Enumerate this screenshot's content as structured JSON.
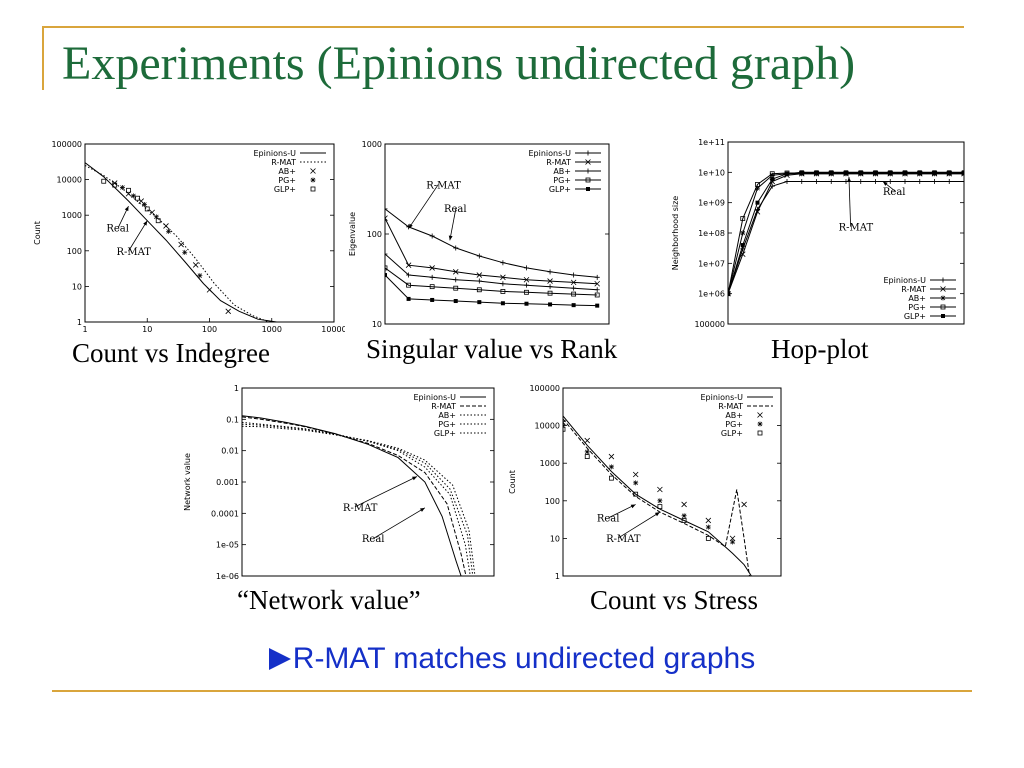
{
  "slide": {
    "title": "Experiments (Epinions undirected graph)",
    "conclusion": "R-MAT matches undirected graphs",
    "accent_color": "#d9a53c",
    "title_color": "#1d6b3a",
    "conclusion_color": "#1530c8"
  },
  "captions": {
    "indegree": "Count vs Indegree",
    "singular": "Singular value vs Rank",
    "hopplot": "Hop-plot",
    "network": "“Network value”",
    "stress": "Count vs Stress"
  },
  "chart_data": [
    {
      "id": "indegree",
      "type": "scatter",
      "title": "",
      "xlabel": "",
      "ylabel": "Count",
      "xscale": "log",
      "yscale": "log",
      "xlim": [
        1,
        10000
      ],
      "ylim": [
        1,
        100000
      ],
      "xticks": [
        1,
        10,
        100,
        1000,
        10000
      ],
      "yticks": [
        1,
        10,
        100,
        1000,
        10000,
        100000
      ],
      "xtick_labels": [
        "1",
        "10",
        "100",
        "1000",
        "10000"
      ],
      "ytick_labels": [
        "1",
        "10",
        "100",
        "1000",
        "10000",
        "100000"
      ],
      "legend_position": "top-right",
      "series": [
        {
          "name": "Epinions-U",
          "style": "solid",
          "x": [
            1,
            2,
            3,
            5,
            10,
            20,
            40,
            80,
            150,
            300,
            600,
            1200
          ],
          "y": [
            30000,
            12000,
            6000,
            2500,
            700,
            200,
            50,
            12,
            4,
            2,
            1.2,
            1
          ]
        },
        {
          "name": "R-MAT",
          "style": "dotted",
          "x": [
            1,
            2,
            4,
            8,
            15,
            30,
            60,
            120,
            250,
            500,
            900
          ],
          "y": [
            25000,
            13000,
            5500,
            2000,
            800,
            250,
            60,
            12,
            3,
            1.5,
            1
          ]
        },
        {
          "name": "AB+",
          "style": "x-marker",
          "x": [
            3,
            5,
            8,
            12,
            20,
            35,
            60,
            100,
            200
          ],
          "y": [
            8000,
            4000,
            2500,
            1200,
            500,
            150,
            40,
            8,
            2
          ]
        },
        {
          "name": "PG+",
          "style": "star-marker",
          "x": [
            4,
            6,
            9,
            14,
            22,
            40,
            70
          ],
          "y": [
            6000,
            3500,
            2000,
            900,
            350,
            90,
            20
          ]
        },
        {
          "name": "GLP+",
          "style": "square-marker",
          "x": [
            2,
            3,
            5,
            7,
            10,
            15
          ],
          "y": [
            9000,
            7000,
            5000,
            3000,
            1500,
            700
          ]
        }
      ],
      "annotations": [
        {
          "text": "Real",
          "x": 2.2,
          "y": 350,
          "arrow_to": [
            5,
            1800
          ]
        },
        {
          "text": "R-MAT",
          "x": 3.2,
          "y": 75,
          "arrow_to": [
            10,
            700
          ]
        }
      ]
    },
    {
      "id": "singular",
      "type": "line",
      "title": "",
      "xlabel": "",
      "ylabel": "Eigenvalue",
      "xscale": "linear",
      "yscale": "log",
      "xlim": [
        1,
        20
      ],
      "ylim": [
        10,
        1000
      ],
      "yticks": [
        10,
        100,
        1000
      ],
      "ytick_labels": [
        "10",
        "100",
        "1000"
      ],
      "legend_position": "top-right",
      "series": [
        {
          "name": "Epinions-U",
          "style": "plus-marker",
          "x": [
            1,
            3,
            5,
            7,
            9,
            11,
            13,
            15,
            17,
            19
          ],
          "y": [
            190,
            120,
            95,
            70,
            57,
            48,
            42,
            38,
            35,
            33
          ]
        },
        {
          "name": "R-MAT",
          "style": "x-marker",
          "x": [
            1,
            3,
            5,
            7,
            9,
            11,
            13,
            15,
            17,
            19
          ],
          "y": [
            150,
            45,
            42,
            38,
            35,
            33,
            31,
            30,
            29,
            28
          ]
        },
        {
          "name": "AB+",
          "style": "plus-marker",
          "x": [
            1,
            3,
            5,
            7,
            9,
            11,
            13,
            15,
            17,
            19
          ],
          "y": [
            60,
            35,
            33,
            31,
            30,
            28,
            27,
            26,
            25,
            24
          ]
        },
        {
          "name": "PG+",
          "style": "square-marker",
          "x": [
            1,
            3,
            5,
            7,
            9,
            11,
            13,
            15,
            17,
            19
          ],
          "y": [
            42,
            27,
            26,
            25,
            24,
            23,
            22.5,
            22,
            21.5,
            21
          ]
        },
        {
          "name": "GLP+",
          "style": "filled-square",
          "x": [
            1,
            3,
            5,
            7,
            9,
            11,
            13,
            15,
            17,
            19
          ],
          "y": [
            35,
            19,
            18.5,
            18,
            17.5,
            17,
            16.8,
            16.5,
            16.2,
            16
          ]
        }
      ],
      "annotations": [
        {
          "text": "R-MAT",
          "x": 4.5,
          "y": 320,
          "arrow_to": [
            3,
            115
          ]
        },
        {
          "text": "Real",
          "x": 6,
          "y": 175,
          "arrow_to": [
            6.5,
            85
          ]
        }
      ]
    },
    {
      "id": "hopplot",
      "type": "line",
      "title": "",
      "xlabel": "",
      "ylabel": "Neighborhood size",
      "xscale": "linear",
      "yscale": "log",
      "xlim": [
        0,
        16
      ],
      "ylim": [
        100000,
        100000000000
      ],
      "yticks": [
        100000,
        1000000,
        10000000,
        100000000,
        1000000000,
        10000000000,
        100000000000
      ],
      "ytick_labels": [
        "100000",
        "1e+06",
        "1e+07",
        "1e+08",
        "1e+09",
        "1e+10",
        "1e+11"
      ],
      "legend_position": "bottom-right",
      "series": [
        {
          "name": "Epinions-U",
          "style": "plus-marker",
          "x": [
            0,
            1,
            2,
            3,
            4,
            5,
            6,
            7,
            8,
            9,
            10,
            11,
            12,
            13,
            14,
            15,
            16
          ],
          "y": [
            1000000.0,
            30000000.0,
            600000000.0,
            3500000000.0,
            5000000000.0,
            5000000000.0,
            5000000000.0,
            5000000000.0,
            5000000000.0,
            5000000000.0,
            5000000000.0,
            5000000000.0,
            5000000000.0,
            5000000000.0,
            5000000000.0,
            5000000000.0,
            5000000000.0
          ]
        },
        {
          "name": "R-MAT",
          "style": "x-marker",
          "x": [
            0,
            1,
            2,
            3,
            4,
            5,
            6,
            7,
            8,
            9,
            10,
            11,
            12,
            13,
            14,
            15,
            16
          ],
          "y": [
            1000000.0,
            20000000.0,
            500000000.0,
            5000000000.0,
            8000000000.0,
            9000000000.0,
            9000000000.0,
            9000000000.0,
            9000000000.0,
            9000000000.0,
            9000000000.0,
            9000000000.0,
            9000000000.0,
            9000000000.0,
            9000000000.0,
            9000000000.0,
            9000000000.0
          ]
        },
        {
          "name": "AB+",
          "style": "star-marker",
          "x": [
            0,
            1,
            2,
            3,
            4,
            5,
            6,
            7,
            8,
            9,
            10,
            11,
            12,
            13,
            14,
            15,
            16
          ],
          "y": [
            1000000.0,
            100000000.0,
            3000000000.0,
            8000000000.0,
            9000000000.0,
            9000000000.0,
            9000000000.0,
            9000000000.0,
            9000000000.0,
            9000000000.0,
            9000000000.0,
            9000000000.0,
            9000000000.0,
            9000000000.0,
            9000000000.0,
            9000000000.0,
            9000000000.0
          ]
        },
        {
          "name": "PG+",
          "style": "square-marker",
          "x": [
            0,
            1,
            2,
            3,
            4,
            5,
            6,
            7,
            8,
            9,
            10,
            11,
            12,
            13,
            14,
            15,
            16
          ],
          "y": [
            1000000.0,
            300000000.0,
            4000000000.0,
            9000000000.0,
            9500000000.0,
            9500000000.0,
            9500000000.0,
            9500000000.0,
            9500000000.0,
            9500000000.0,
            9500000000.0,
            9500000000.0,
            9500000000.0,
            9500000000.0,
            9500000000.0,
            9500000000.0,
            9500000000.0
          ]
        },
        {
          "name": "GLP+",
          "style": "filled-square",
          "x": [
            0,
            1,
            2,
            3,
            4,
            5,
            6,
            7,
            8,
            9,
            10,
            11,
            12,
            13,
            14,
            15,
            16
          ],
          "y": [
            1000000.0,
            40000000.0,
            1000000000.0,
            6000000000.0,
            9000000000.0,
            10000000000.0,
            10000000000.0,
            10000000000.0,
            10000000000.0,
            10000000000.0,
            10000000000.0,
            10000000000.0,
            10000000000.0,
            10000000000.0,
            10000000000.0,
            10000000000.0,
            10000000000.0
          ]
        }
      ],
      "annotations": [
        {
          "text": "Real",
          "x": 10.5,
          "y": 1800000000.0,
          "arrow_to": [
            10.5,
            5000000000.0
          ]
        },
        {
          "text": "R-MAT",
          "x": 7.5,
          "y": 120000000.0,
          "arrow_to": [
            8.2,
            7000000000.0
          ]
        }
      ]
    },
    {
      "id": "network",
      "type": "line",
      "title": "",
      "xlabel": "",
      "ylabel": "Network value",
      "xscale": "log",
      "yscale": "log",
      "xlim": [
        1,
        10000
      ],
      "ylim": [
        1e-06,
        1
      ],
      "yticks": [
        1e-06,
        1e-05,
        0.0001,
        0.001,
        0.01,
        0.1,
        1
      ],
      "ytick_labels": [
        "1e-06",
        "1e-05",
        "0.0001",
        "0.001",
        "0.01",
        "0.1",
        "1"
      ],
      "legend_position": "top-right",
      "series": [
        {
          "name": "Epinions-U",
          "style": "solid",
          "x": [
            1,
            2,
            5,
            10,
            30,
            100,
            300,
            800,
            1500,
            2500,
            3000
          ],
          "y": [
            0.13,
            0.11,
            0.08,
            0.06,
            0.035,
            0.016,
            0.006,
            0.001,
            8e-05,
            3e-06,
            1e-06
          ]
        },
        {
          "name": "R-MAT",
          "style": "dashed",
          "x": [
            1,
            2,
            5,
            10,
            30,
            100,
            300,
            800,
            1800,
            3000,
            3600
          ],
          "y": [
            0.12,
            0.1,
            0.075,
            0.058,
            0.034,
            0.017,
            0.007,
            0.002,
            0.0002,
            5e-06,
            1e-06
          ]
        },
        {
          "name": "AB+",
          "style": "dotted",
          "x": [
            1,
            2,
            5,
            10,
            30,
            100,
            300,
            800,
            2000,
            3500,
            4200
          ],
          "y": [
            0.07,
            0.065,
            0.055,
            0.048,
            0.033,
            0.02,
            0.01,
            0.003,
            0.0004,
            1e-05,
            1e-06
          ]
        },
        {
          "name": "PG+",
          "style": "dotted",
          "x": [
            1,
            2,
            5,
            10,
            30,
            100,
            300,
            800,
            2000,
            3800,
            4600
          ],
          "y": [
            0.08,
            0.07,
            0.058,
            0.05,
            0.034,
            0.02,
            0.011,
            0.004,
            0.0006,
            2e-05,
            1e-06
          ]
        },
        {
          "name": "GLP+",
          "style": "dotted",
          "x": [
            1,
            2,
            5,
            10,
            30,
            100,
            300,
            800,
            2200,
            4000,
            5000
          ],
          "y": [
            0.06,
            0.058,
            0.05,
            0.045,
            0.032,
            0.021,
            0.012,
            0.005,
            0.0008,
            3e-05,
            1e-06
          ]
        }
      ],
      "annotations": [
        {
          "text": "R-MAT",
          "x": 40,
          "y": 0.00012,
          "arrow_to": [
            600,
            0.0015
          ]
        },
        {
          "text": "Real",
          "x": 80,
          "y": 1.2e-05,
          "arrow_to": [
            800,
            0.00015
          ]
        }
      ]
    },
    {
      "id": "stress",
      "type": "scatter",
      "title": "",
      "xlabel": "",
      "ylabel": "Count",
      "xscale": "log",
      "yscale": "log",
      "xlim": [
        1,
        1000000000
      ],
      "ylim": [
        1,
        100000
      ],
      "yticks": [
        1,
        10,
        100,
        1000,
        10000,
        100000
      ],
      "ytick_labels": [
        "1",
        "10",
        "100",
        "1000",
        "10000",
        "100000"
      ],
      "legend_position": "top-right",
      "series": [
        {
          "name": "Epinions-U",
          "style": "solid",
          "x": [
            1,
            10,
            100,
            1000,
            10000,
            100000,
            1000000,
            3000000,
            10000000,
            30000000,
            60000000
          ],
          "y": [
            18000,
            3000,
            600,
            150,
            60,
            30,
            15,
            8,
            4,
            2,
            1
          ]
        },
        {
          "name": "R-MAT",
          "style": "dashed",
          "x": [
            1,
            10,
            100,
            1000,
            10000,
            100000,
            1000000,
            5000000,
            15000000,
            30000000,
            50000000
          ],
          "y": [
            15000,
            2500,
            500,
            130,
            50,
            25,
            12,
            6,
            200,
            10,
            1
          ]
        },
        {
          "name": "AB+",
          "style": "x-marker",
          "x": [
            1,
            10,
            100,
            1000,
            10000,
            100000,
            1000000,
            10000000,
            30000000
          ],
          "y": [
            12000,
            4000,
            1500,
            500,
            200,
            80,
            30,
            10,
            80
          ]
        },
        {
          "name": "PG+",
          "style": "star-marker",
          "x": [
            1,
            10,
            100,
            1000,
            10000,
            100000,
            1000000,
            10000000
          ],
          "y": [
            10000,
            2000,
            800,
            300,
            100,
            40,
            20,
            8
          ]
        },
        {
          "name": "GLP+",
          "style": "square-marker",
          "x": [
            1,
            10,
            100,
            1000,
            10000,
            100000,
            1000000
          ],
          "y": [
            8000,
            1500,
            400,
            150,
            70,
            30,
            10
          ]
        }
      ],
      "annotations": [
        {
          "text": "Real",
          "x": 25,
          "y": 28,
          "arrow_to": [
            1000,
            80
          ]
        },
        {
          "text": "R-MAT",
          "x": 60,
          "y": 8,
          "arrow_to": [
            10000,
            50
          ]
        }
      ]
    }
  ]
}
